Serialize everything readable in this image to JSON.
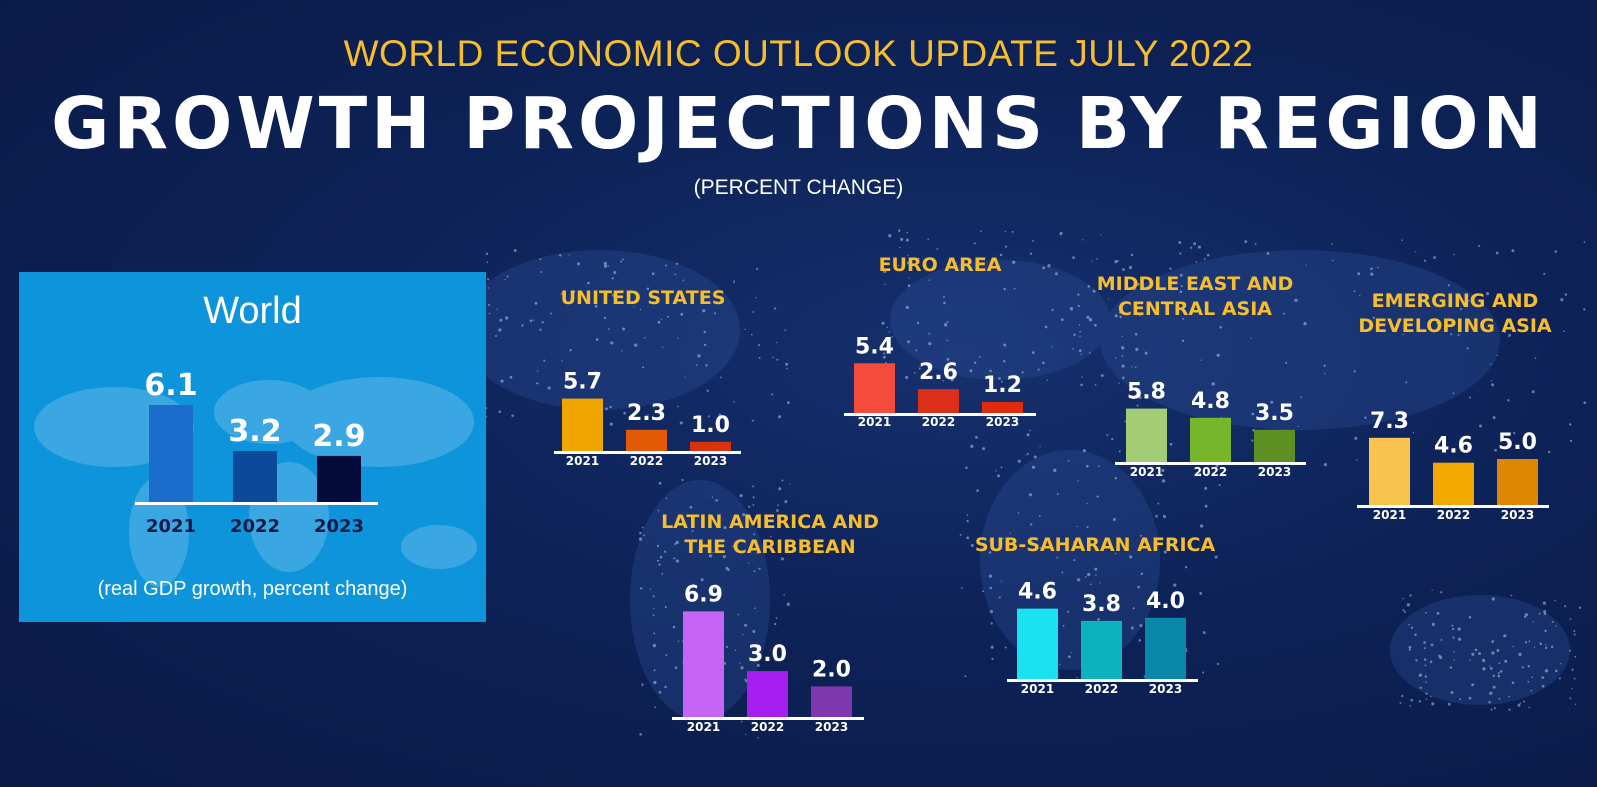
{
  "header": {
    "kicker": "WORLD ECONOMIC OUTLOOK UPDATE JULY 2022",
    "title": "GROWTH PROJECTIONS BY REGION",
    "subtitle": "(PERCENT CHANGE)"
  },
  "world_panel": {
    "title": "World",
    "note": "(real GDP growth, percent change)"
  },
  "chart_data": [
    {
      "type": "bar",
      "title": "World",
      "categories": [
        "2021",
        "2022",
        "2023"
      ],
      "values": [
        6.1,
        3.2,
        2.9
      ],
      "colors": [
        "#1c6ccc",
        "#0b4a98",
        "#050c3b"
      ]
    },
    {
      "type": "bar",
      "title": "UNITED STATES",
      "categories": [
        "2021",
        "2022",
        "2023"
      ],
      "values": [
        5.7,
        2.3,
        1.0
      ],
      "colors": [
        "#f0a500",
        "#e35a06",
        "#d9330e"
      ]
    },
    {
      "type": "bar",
      "title": "EURO AREA",
      "categories": [
        "2021",
        "2022",
        "2023"
      ],
      "values": [
        5.4,
        2.6,
        1.2
      ],
      "colors": [
        "#f44b3c",
        "#da2f18",
        "#e22a0f"
      ]
    },
    {
      "type": "bar",
      "title": "MIDDLE EAST AND CENTRAL ASIA",
      "categories": [
        "2021",
        "2022",
        "2023"
      ],
      "values": [
        5.8,
        4.8,
        3.5
      ],
      "colors": [
        "#a3cd74",
        "#77b52a",
        "#5d8f22"
      ]
    },
    {
      "type": "bar",
      "title": "EMERGING AND DEVELOPING ASIA",
      "categories": [
        "2021",
        "2022",
        "2023"
      ],
      "values": [
        7.3,
        4.6,
        5.0
      ],
      "colors": [
        "#f8c44d",
        "#f2a900",
        "#df8703"
      ]
    },
    {
      "type": "bar",
      "title": "LATIN AMERICA AND THE CARIBBEAN",
      "categories": [
        "2021",
        "2022",
        "2023"
      ],
      "values": [
        6.9,
        3.0,
        2.0
      ],
      "colors": [
        "#c665f5",
        "#a61ef0",
        "#7e37ac"
      ]
    },
    {
      "type": "bar",
      "title": "SUB-SAHARAN AFRICA",
      "categories": [
        "2021",
        "2022",
        "2023"
      ],
      "values": [
        4.6,
        3.8,
        4.0
      ],
      "colors": [
        "#19e3f0",
        "#0db2bf",
        "#0a87a8"
      ]
    }
  ]
}
